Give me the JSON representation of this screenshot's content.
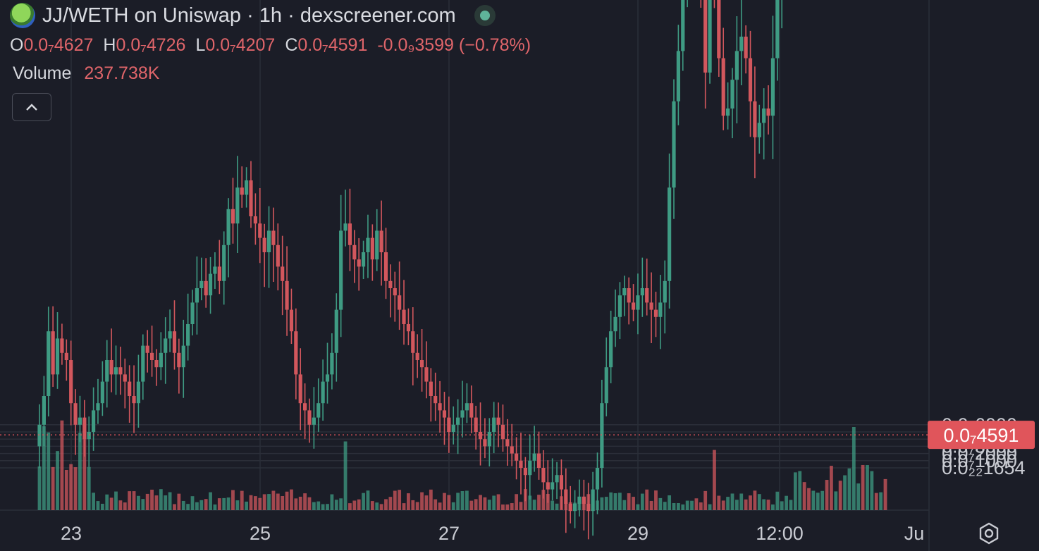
{
  "header": {
    "title": "JJ/WETH on Uniswap · 1h · dexscreener.com",
    "logo_icon": "token-logo-icon",
    "live_icon": "live-status-dot-icon"
  },
  "ohlc": {
    "open_label": "O",
    "open": "0.0₇4627",
    "high_label": "H",
    "high": "0.0₇4726",
    "low_label": "L",
    "low": "0.0₇4207",
    "close_label": "C",
    "close": "0.0₇4591",
    "change": "-0.0₉3599 (−0.78%)"
  },
  "volume": {
    "label": "Volume",
    "value": "237.738K"
  },
  "collapse_icon": "chevron-up-icon",
  "settings_icon": "gear-icon",
  "colors": {
    "up": "#3f9b83",
    "down": "#d2575d",
    "background": "#1b1d27",
    "grid": "#2b2e39",
    "last_price": "#e0555b"
  },
  "chart_data": {
    "type": "candlestick",
    "y_axis": {
      "ticks": [
        {
          "label": "0.0₇6000",
          "value": 6e-08
        },
        {
          "label": "0.0₇5000",
          "value": 5e-08
        },
        {
          "label": "0.0₇4000",
          "value": 4e-08
        },
        {
          "label": "0.0₇3000",
          "value": 3e-08
        },
        {
          "label": "0.0₇2000",
          "value": 2e-08
        },
        {
          "label": "0.0₇1000",
          "value": 1e-08
        },
        {
          "label": "0.0₂₂1654",
          "value": 0.0
        }
      ],
      "range": [
        0.0,
        6.6e-08
      ]
    },
    "x_axis": {
      "ticks": [
        "23",
        "25",
        "27",
        "29",
        "12:00",
        "Ju"
      ]
    },
    "last_price": {
      "label": "0.0₇4591",
      "value": 4.591e-08
    },
    "series": [
      {
        "name": "price",
        "close_path_e7": [
          0.6,
          1.0,
          1.9,
          1.3,
          1.8,
          1.6,
          1.5,
          0.9,
          0.6,
          0.7,
          0.4,
          0.5,
          0.8,
          0.9,
          1.2,
          1.5,
          1.3,
          1.4,
          1.3,
          1.2,
          1.0,
          0.9,
          1.2,
          1.7,
          1.6,
          1.5,
          1.4,
          1.6,
          1.8,
          1.9,
          1.6,
          1.4,
          1.7,
          2.0,
          2.3,
          2.5,
          2.6,
          2.4,
          2.7,
          2.8,
          2.6,
          3.1,
          3.6,
          3.4,
          3.9,
          3.8,
          4.0,
          3.5,
          3.4,
          3.2,
          3.0,
          3.3,
          3.1,
          2.8,
          2.6,
          2.2,
          1.9,
          1.3,
          0.9,
          0.8,
          0.6,
          0.7,
          0.9,
          1.2,
          1.3,
          1.6,
          2.2,
          3.3,
          3.4,
          3.1,
          2.9,
          2.8,
          3.0,
          3.2,
          2.9,
          3.3,
          3.0,
          2.6,
          2.5,
          2.4,
          2.2,
          2.0,
          1.9,
          1.6,
          1.5,
          1.4,
          1.2,
          1.0,
          0.9,
          0.8,
          0.7,
          0.5,
          0.6,
          0.7,
          0.8,
          0.9,
          0.7,
          0.5,
          0.4,
          0.3,
          0.5,
          0.7,
          0.6,
          0.4,
          0.3,
          0.2,
          0.1,
          0.0,
          -0.1,
          0.1,
          0.2,
          0.0,
          -0.2,
          -0.3,
          -0.2,
          -0.1,
          -0.3,
          -0.5,
          -0.6,
          -0.5,
          -0.4,
          -0.5,
          -0.6,
          -0.3,
          0.0,
          0.9,
          1.4,
          1.9,
          2.1,
          2.4,
          2.5,
          2.3,
          2.2,
          2.4,
          2.5,
          2.3,
          2.2,
          2.1,
          2.3,
          2.6,
          3.9,
          5.1,
          5.8,
          6.9,
          7.4,
          7.5,
          7.0,
          6.6,
          5.5,
          6.9,
          6.7,
          5.7,
          4.9,
          5.0,
          5.4,
          5.8,
          6.0,
          5.7,
          5.1,
          4.6,
          4.8,
          5.0,
          4.9,
          5.7,
          6.7,
          8.0,
          10.6,
          13.4,
          16.9,
          19.4,
          17.5,
          16.4,
          19.3,
          22.5,
          22.9,
          21.7,
          19.9,
          20.6,
          19.3,
          21.2,
          29.8,
          32.8,
          37.6,
          32.6,
          40.3,
          46.9,
          41.5,
          46.8,
          45.9
        ]
      }
    ]
  }
}
